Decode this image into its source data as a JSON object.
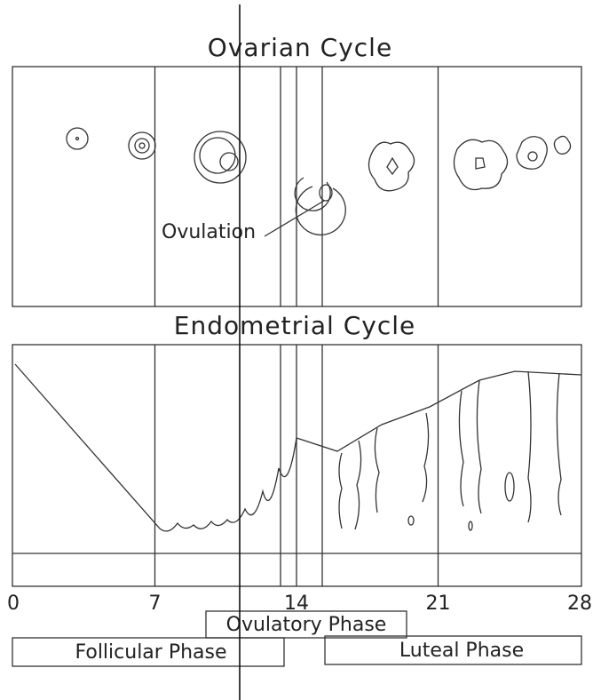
{
  "ovarian": {
    "title": "Ovarian Cycle",
    "annotation": "Ovulation"
  },
  "endometrial": {
    "title": "Endometrial Cycle"
  },
  "axis": {
    "ticks": [
      0,
      7,
      14,
      21,
      28
    ]
  },
  "phases": {
    "ovulatory": "Ovulatory Phase",
    "follicular": "Follicular Phase",
    "luteal": "Luteal Phase"
  }
}
